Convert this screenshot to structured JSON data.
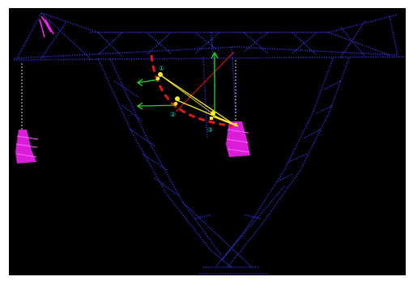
{
  "image": {
    "background_color": "#000000",
    "frame_color": "#ffffff",
    "tower_point_color": "#2f2fd0",
    "insulator_color": "#ff22ff",
    "trajectory_color": "#e01818",
    "radial_line_color": "#ffee22",
    "direction_line_color": "#22d822",
    "marker_label_color": "#19e3c8",
    "markers": [
      {
        "label": "①"
      },
      {
        "label": "②"
      },
      {
        "label": "③"
      }
    ]
  }
}
